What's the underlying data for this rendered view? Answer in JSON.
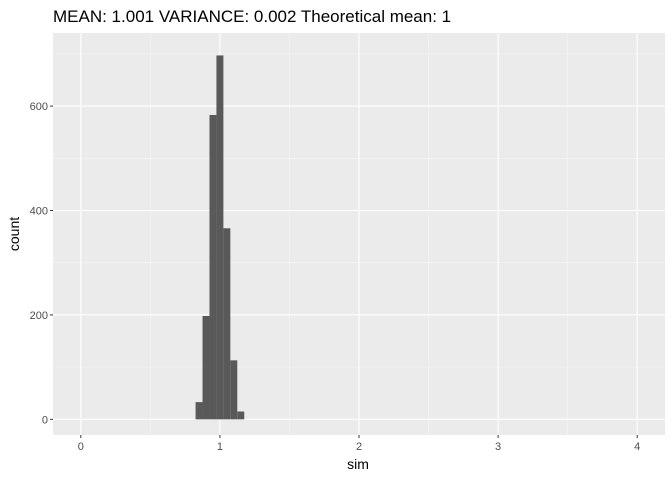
{
  "chart_data": {
    "type": "bar",
    "subtype": "histogram",
    "title": "MEAN:  1.001  VARIANCE:  0.002  Theoretical mean: 1",
    "xlabel": "sim",
    "ylabel": "count",
    "xlim": [
      -0.2,
      4.2
    ],
    "ylim": [
      -30,
      740
    ],
    "x_ticks": [
      0,
      1,
      2,
      3,
      4
    ],
    "y_ticks": [
      0,
      200,
      400,
      600
    ],
    "grid": true,
    "legend": "none",
    "bin_width": 0.05,
    "bin_centers": [
      0.85,
      0.9,
      0.95,
      1.0,
      1.05,
      1.1,
      1.15
    ],
    "values": [
      33,
      198,
      583,
      697,
      366,
      113,
      15
    ],
    "colors": {
      "panel_background": "#ebebeb",
      "grid_major": "#ffffff",
      "grid_minor": "#f5f5f5",
      "bar_fill": "#595959",
      "tick_text": "#4d4d4d"
    }
  }
}
